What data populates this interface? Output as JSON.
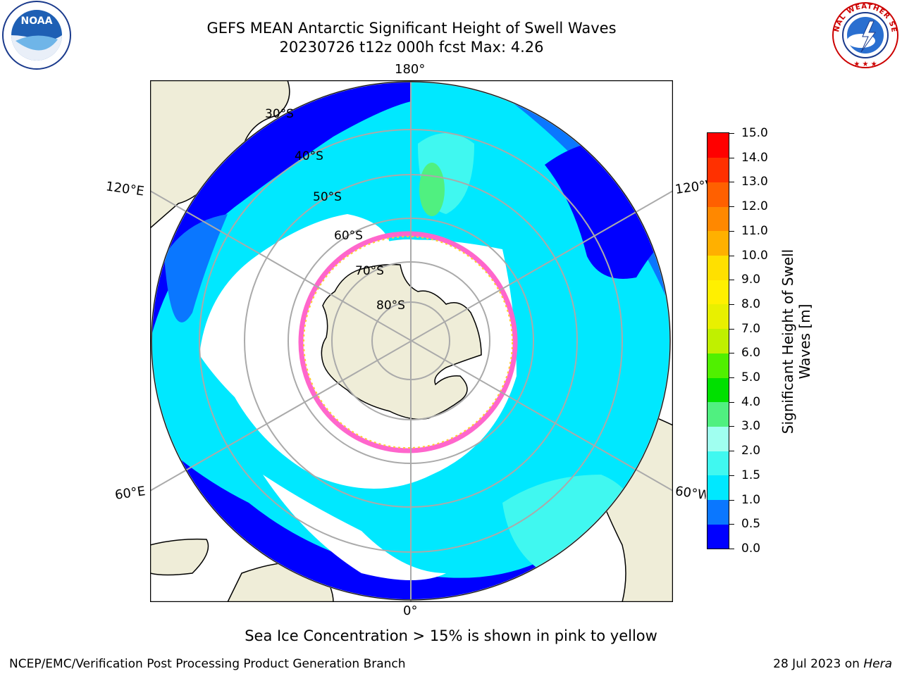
{
  "header": {
    "title_line1": "GEFS MEAN Antarctic Significant Height of Swell Waves",
    "title_line2": "20230726 t12z 000h fcst   Max: 4.26"
  },
  "logos": {
    "left": {
      "name": "noaa-logo",
      "text": "NOAA"
    },
    "right": {
      "name": "nws-logo",
      "text": "NATIONAL WEATHER SERVICE"
    }
  },
  "map": {
    "projection": "south-polar-stereographic",
    "longitude_labels": {
      "top": "180°",
      "bottom": "0°",
      "left_upper": "120°E",
      "left_lower": "60°E",
      "right_upper": "120°W",
      "right_lower": "60°W"
    },
    "latitude_labels": [
      "30°S",
      "40°S",
      "50°S",
      "60°S",
      "70°S",
      "80°S"
    ],
    "colors": {
      "land": "#efedd8",
      "ocean_low": "#0000ff",
      "ice_edge": "#ff66cc"
    }
  },
  "colorbar": {
    "title": "Significant Height of Swell Waves [m]",
    "title_line1": "Significant Height of Swell",
    "title_line2": "Waves [m]",
    "ticks": [
      "0.0",
      "0.5",
      "1.0",
      "1.5",
      "2.0",
      "3.0",
      "4.0",
      "5.0",
      "6.0",
      "7.0",
      "8.0",
      "9.0",
      "10.0",
      "11.0",
      "12.0",
      "13.0",
      "14.0",
      "15.0"
    ],
    "colors": [
      "#0000ff",
      "#0a77ff",
      "#00e8ff",
      "#40f8f0",
      "#a0fff0",
      "#50f080",
      "#00e000",
      "#50f000",
      "#c0f000",
      "#e8f000",
      "#fff000",
      "#ffe000",
      "#ffb000",
      "#ff8800",
      "#ff6000",
      "#ff3000",
      "#ff0000"
    ]
  },
  "note": "Sea Ice Concentration > 15% is shown in pink to yellow",
  "footer": {
    "left": "NCEP/EMC/Verification Post Processing Product Generation Branch",
    "right_date": "28 Jul 2023 on ",
    "right_host": "Hera"
  }
}
